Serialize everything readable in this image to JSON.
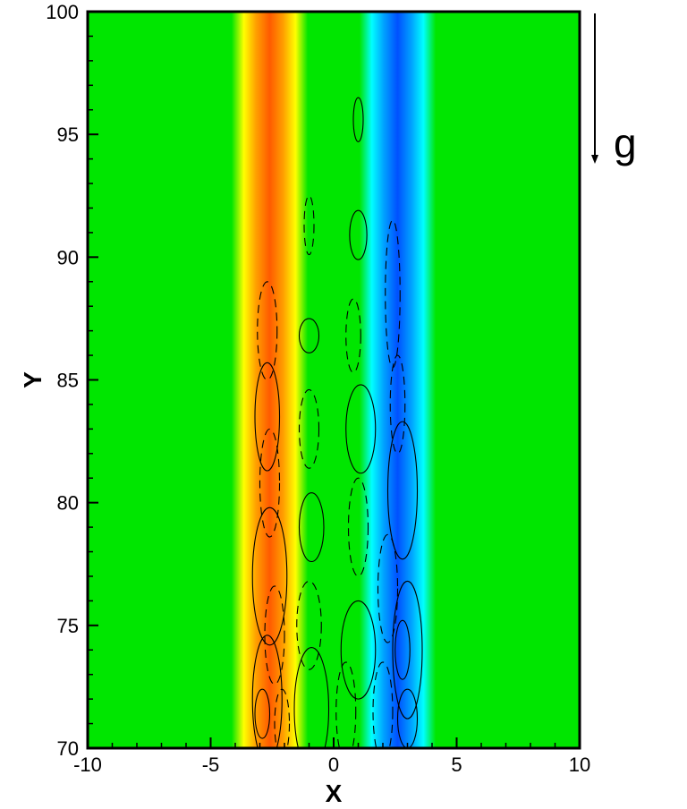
{
  "chart_data": {
    "type": "heatmap",
    "title": "",
    "xlabel": "X",
    "ylabel": "Y",
    "xlim": [
      -10,
      10
    ],
    "ylim": [
      70,
      100
    ],
    "x_ticks": [
      -10,
      -5,
      0,
      5,
      10
    ],
    "y_ticks": [
      70,
      75,
      80,
      85,
      90,
      95,
      100
    ],
    "x_tick_labels": [
      "-10",
      "-5",
      "0",
      "5",
      "10"
    ],
    "y_tick_labels": [
      "70",
      "75",
      "80",
      "85",
      "90",
      "95",
      "100"
    ],
    "grid": false,
    "legend": "none",
    "background_color": "#00e600",
    "color_bands": [
      {
        "name": "positive-band",
        "center_x": -2.6,
        "color": "#ff5a00"
      },
      {
        "name": "negative-band",
        "center_x": 2.6,
        "color": "#0050ff"
      }
    ],
    "contours": {
      "solid": [
        {
          "cx": 1.0,
          "cy": 95.6,
          "rx": 0.2,
          "ry": 0.9
        },
        {
          "cx": 1.0,
          "cy": 90.9,
          "rx": 0.35,
          "ry": 1.0
        },
        {
          "cx": -1.0,
          "cy": 86.8,
          "rx": 0.4,
          "ry": 0.7
        },
        {
          "cx": -2.7,
          "cy": 83.5,
          "rx": 0.5,
          "ry": 2.2
        },
        {
          "cx": 1.1,
          "cy": 83.0,
          "rx": 0.6,
          "ry": 1.8
        },
        {
          "cx": 2.8,
          "cy": 80.5,
          "rx": 0.6,
          "ry": 2.8
        },
        {
          "cx": -0.9,
          "cy": 79.0,
          "rx": 0.5,
          "ry": 1.4
        },
        {
          "cx": -2.6,
          "cy": 77.0,
          "rx": 0.7,
          "ry": 2.8
        },
        {
          "cx": 1.0,
          "cy": 74.0,
          "rx": 0.7,
          "ry": 2.0
        },
        {
          "cx": 3.0,
          "cy": 74.0,
          "rx": 0.6,
          "ry": 2.8
        },
        {
          "cx": 2.8,
          "cy": 74.0,
          "rx": 0.3,
          "ry": 1.2
        },
        {
          "cx": -0.9,
          "cy": 71.6,
          "rx": 0.7,
          "ry": 2.5
        },
        {
          "cx": -2.7,
          "cy": 72.0,
          "rx": 0.6,
          "ry": 2.6
        },
        {
          "cx": -2.9,
          "cy": 71.4,
          "rx": 0.3,
          "ry": 1.0
        },
        {
          "cx": 3.0,
          "cy": 71.2,
          "rx": 0.4,
          "ry": 1.2
        }
      ],
      "dashed": [
        {
          "cx": -1.0,
          "cy": 91.3,
          "rx": 0.2,
          "ry": 1.2
        },
        {
          "cx": 2.4,
          "cy": 88.5,
          "rx": 0.3,
          "ry": 3.0
        },
        {
          "cx": -2.7,
          "cy": 87.0,
          "rx": 0.4,
          "ry": 2.0
        },
        {
          "cx": 0.8,
          "cy": 86.8,
          "rx": 0.3,
          "ry": 1.5
        },
        {
          "cx": -1.0,
          "cy": 83.0,
          "rx": 0.4,
          "ry": 1.6
        },
        {
          "cx": 2.6,
          "cy": 84.0,
          "rx": 0.3,
          "ry": 2.0
        },
        {
          "cx": -2.6,
          "cy": 80.8,
          "rx": 0.4,
          "ry": 2.2
        },
        {
          "cx": 1.0,
          "cy": 79.0,
          "rx": 0.4,
          "ry": 2.0
        },
        {
          "cx": -1.0,
          "cy": 75.0,
          "rx": 0.5,
          "ry": 1.8
        },
        {
          "cx": -2.4,
          "cy": 74.6,
          "rx": 0.4,
          "ry": 2.0
        },
        {
          "cx": 2.2,
          "cy": 76.5,
          "rx": 0.4,
          "ry": 2.2
        },
        {
          "cx": 0.5,
          "cy": 71.5,
          "rx": 0.4,
          "ry": 2.0
        },
        {
          "cx": 2.0,
          "cy": 71.5,
          "rx": 0.4,
          "ry": 2.0
        },
        {
          "cx": -2.1,
          "cy": 71.0,
          "rx": 0.3,
          "ry": 1.4
        }
      ]
    },
    "annotation": {
      "text": "g",
      "arrow": "down"
    }
  }
}
